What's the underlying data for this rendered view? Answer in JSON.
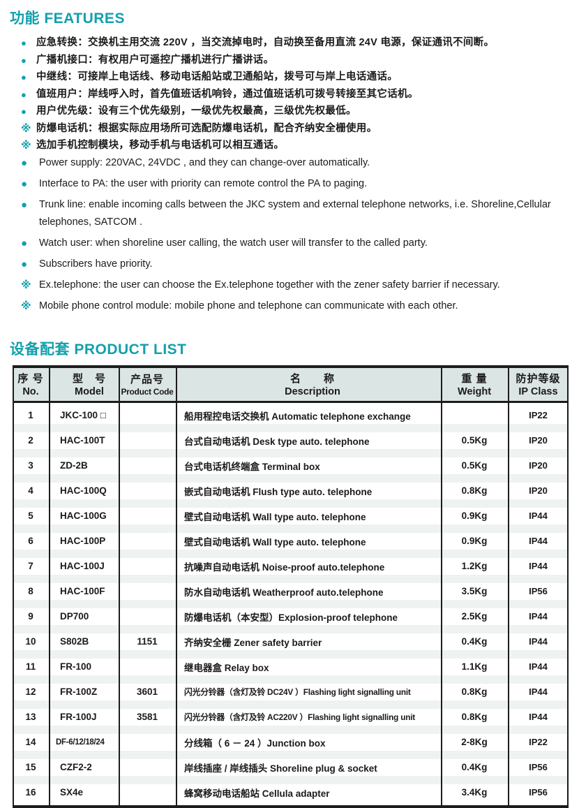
{
  "features": {
    "title": "功能 FEATURES",
    "marker_glyphs": {
      "dot": "●",
      "star": "※"
    },
    "items": [
      {
        "marker": "dot",
        "text": "应急转换：交换机主用交流 220V ，当交流掉电时，自动换至备用直流 24V 电源，保证通讯不间断。"
      },
      {
        "marker": "dot",
        "text": "广播机接口：有权用户可遥控广播机进行广播讲话。"
      },
      {
        "marker": "dot",
        "text": "中继线：可接岸上电话线、移动电话船站或卫通船站，拨号可与岸上电话通话。"
      },
      {
        "marker": "dot",
        "text": "值班用户：岸线呼入时，首先值班话机响铃，通过值班话机可拨号转接至其它话机。"
      },
      {
        "marker": "dot",
        "text": "用户优先级：设有三个优先级别，一级优先权最高，三级优先权最低。"
      },
      {
        "marker": "star",
        "text": "防爆电话机：根据实际应用场所可选配防爆电话机，配合齐纳安全栅使用。"
      },
      {
        "marker": "star",
        "text": "选加手机控制模块，移动手机与电话机可以相互通话。"
      },
      {
        "marker": "dot",
        "text": "Power supply: 220VAC, 24VDC , and they can change-over automatically."
      },
      {
        "marker": "dot",
        "text": "Interface to PA: the user with priority can remote control the PA to paging."
      },
      {
        "marker": "dot",
        "text": "Trunk line: enable incoming calls between the JKC system  and external telephone networks, i.e. Shoreline,Cellular telephones, SATCOM ."
      },
      {
        "marker": "dot",
        "text": "Watch user: when shoreline user calling, the watch user will transfer to the called party."
      },
      {
        "marker": "dot",
        "text": "Subscribers have priority."
      },
      {
        "marker": "star",
        "text": "Ex.telephone: the user can choose the Ex.telephone together with the zener safety barrier if necessary."
      },
      {
        "marker": "star",
        "text": "Mobile phone control module: mobile phone and telephone can communicate with each other."
      }
    ]
  },
  "product_list": {
    "title": "设备配套 PRODUCT LIST",
    "columns": [
      {
        "zh": "序 号",
        "en": "No."
      },
      {
        "zh": "型　号",
        "en": "Model"
      },
      {
        "zh": "产品号",
        "en": "Product Code"
      },
      {
        "zh": "名　　称",
        "en": "Description"
      },
      {
        "zh": "重 量",
        "en": "Weight"
      },
      {
        "zh": "防护等级",
        "en": "IP Class"
      }
    ],
    "rows": [
      {
        "no": "1",
        "model": "JKC-100 □",
        "code": "",
        "desc": "船用程控电话交换机  Automatic telephone exchange",
        "weight": "",
        "ip": "IP22"
      },
      {
        "no": "2",
        "model": "HAC-100T",
        "code": "",
        "desc": "台式自动电话机  Desk type auto. telephone",
        "weight": "0.5Kg",
        "ip": "IP20"
      },
      {
        "no": "3",
        "model": "ZD-2B",
        "code": "",
        "desc": "台式电话机终端盒  Terminal box",
        "weight": "0.5Kg",
        "ip": "IP20"
      },
      {
        "no": "4",
        "model": "HAC-100Q",
        "code": "",
        "desc": "嵌式自动电话机  Flush type auto. telephone",
        "weight": "0.8Kg",
        "ip": "IP20"
      },
      {
        "no": "5",
        "model": "HAC-100G",
        "code": "",
        "desc": "壁式自动电话机  Wall type auto. telephone",
        "weight": "0.9Kg",
        "ip": "IP44"
      },
      {
        "no": "6",
        "model": "HAC-100P",
        "code": "",
        "desc": "壁式自动电话机  Wall  type auto. telephone",
        "weight": "0.9Kg",
        "ip": "IP44"
      },
      {
        "no": "7",
        "model": "HAC-100J",
        "code": "",
        "desc": "抗噪声自动电话机  Noise-proof auto.telephone",
        "weight": "1.2Kg",
        "ip": "IP44"
      },
      {
        "no": "8",
        "model": "HAC-100F",
        "code": "",
        "desc": "防水自动电话机  Weatherproof auto.telephone",
        "weight": "3.5Kg",
        "ip": "IP56"
      },
      {
        "no": "9",
        "model": "DP700",
        "code": "",
        "desc": "防爆电话机（本安型）Explosion-proof telephone",
        "weight": "2.5Kg",
        "ip": "IP44"
      },
      {
        "no": "10",
        "model": "S802B",
        "code": "1151",
        "desc": "齐纳安全栅  Zener safety barrier",
        "weight": "0.4Kg",
        "ip": "IP44"
      },
      {
        "no": "11",
        "model": "FR-100",
        "code": "",
        "desc": "继电器盒  Relay box",
        "weight": "1.1Kg",
        "ip": "IP44"
      },
      {
        "no": "12",
        "model": "FR-100Z",
        "code": "3601",
        "desc": "闪光分铃器（含灯及铃 DC24V ）Flashing light signalling unit",
        "weight": "0.8Kg",
        "ip": "IP44"
      },
      {
        "no": "13",
        "model": "FR-100J",
        "code": "3581",
        "desc": "闪光分铃器（含灯及铃 AC220V ）Flashing light signalling unit",
        "weight": "0.8Kg",
        "ip": "IP44"
      },
      {
        "no": "14",
        "model": "DF-6/12/18/24",
        "code": "",
        "desc": "分线箱（ 6 － 24 ）Junction box",
        "weight": "2-8Kg",
        "ip": "IP22"
      },
      {
        "no": "15",
        "model": "CZF2-2",
        "code": "",
        "desc": "岸线插座 / 岸线插头  Shoreline plug & socket",
        "weight": "0.4Kg",
        "ip": "IP56"
      },
      {
        "no": "16",
        "model": "SX4e",
        "code": "",
        "desc": "蜂窝移动电话船站  Cellula adapter",
        "weight": "3.4Kg",
        "ip": "IP56"
      }
    ]
  },
  "colors": {
    "accent_teal": "#12a0ac",
    "table_header_bg": "#dbe5e4",
    "row_band": "#eef2f1",
    "line_black": "#1c1c1c"
  }
}
